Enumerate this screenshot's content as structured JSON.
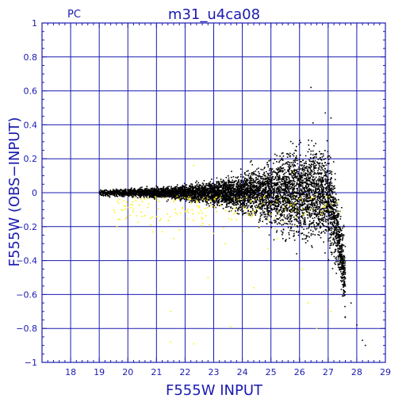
{
  "header": {
    "left_label": "PC",
    "title": "m31_u4ca08"
  },
  "chart_data": {
    "type": "scatter",
    "xlabel": "F555W  INPUT",
    "ylabel": "F555W  (OBS−INPUT)",
    "xlim": [
      17,
      29
    ],
    "ylim": [
      -1,
      1
    ],
    "x_ticks": [
      18,
      19,
      20,
      21,
      22,
      23,
      24,
      25,
      26,
      27,
      28,
      29
    ],
    "y_ticks": [
      -1,
      -0.8,
      -0.6,
      -0.4,
      -0.2,
      0,
      0.2,
      0.4,
      0.6,
      0.8,
      1
    ],
    "y_tick_labels": [
      "−1",
      "−0.8",
      "−0.6",
      "−0.4",
      "−0.2",
      "0",
      "0.2",
      "0.4",
      "0.6",
      "0.8",
      "1"
    ],
    "grid": true,
    "colors": {
      "frame": "#1a1ab0",
      "main_points": "#000000",
      "outlier_points": "#ffee00"
    },
    "series": [
      {
        "points_sampled": [
          [
            19.1,
            0.01
          ],
          [
            19.3,
            0.0
          ],
          [
            19.5,
            0.01
          ],
          [
            19.8,
            0.0
          ],
          [
            20.1,
            0.01
          ],
          [
            20.4,
            -0.01
          ],
          [
            20.7,
            0.0
          ],
          [
            21.0,
            0.01
          ],
          [
            21.3,
            0.0
          ],
          [
            21.6,
            -0.01
          ],
          [
            21.9,
            0.0
          ],
          [
            22.2,
            0.01
          ],
          [
            22.5,
            0.0
          ],
          [
            22.8,
            -0.01
          ],
          [
            23.1,
            0.01
          ],
          [
            23.4,
            0.0
          ],
          [
            23.7,
            0.02
          ],
          [
            24.0,
            -0.02
          ],
          [
            24.3,
            0.03
          ],
          [
            24.6,
            -0.03
          ],
          [
            24.9,
            0.04
          ],
          [
            25.2,
            -0.04
          ],
          [
            25.5,
            0.06
          ],
          [
            25.8,
            -0.06
          ],
          [
            26.1,
            0.1
          ],
          [
            26.3,
            -0.1
          ],
          [
            26.5,
            0.15
          ],
          [
            26.7,
            -0.12
          ],
          [
            26.9,
            0.2
          ],
          [
            27.0,
            -0.18
          ],
          [
            27.2,
            -0.3
          ],
          [
            27.4,
            -0.4
          ],
          [
            27.6,
            -0.55
          ],
          [
            27.8,
            -0.65
          ],
          [
            28.0,
            -0.78
          ],
          [
            28.2,
            -0.87
          ],
          [
            26.4,
            0.62
          ],
          [
            26.9,
            0.47
          ],
          [
            27.1,
            0.44
          ],
          [
            28.3,
            -0.9
          ]
        ]
      },
      {
        "points_sampled": [
          [
            19.7,
            -0.04
          ],
          [
            20.2,
            -0.1
          ],
          [
            20.5,
            -0.14
          ],
          [
            20.8,
            -0.19
          ],
          [
            21.2,
            -0.23
          ],
          [
            21.6,
            -0.27
          ],
          [
            22.0,
            -0.11
          ],
          [
            22.3,
            0.16
          ],
          [
            22.6,
            -0.12
          ],
          [
            23.0,
            -0.24
          ],
          [
            23.4,
            -0.3
          ],
          [
            23.8,
            -0.16
          ],
          [
            24.2,
            -0.12
          ],
          [
            24.6,
            -0.2
          ],
          [
            24.9,
            -0.33
          ],
          [
            25.2,
            -0.27
          ],
          [
            25.5,
            -0.1
          ],
          [
            25.8,
            0.12
          ],
          [
            26.1,
            -0.45
          ],
          [
            26.3,
            -0.65
          ],
          [
            26.6,
            -0.8
          ],
          [
            27.1,
            -0.7
          ],
          [
            21.5,
            -0.88
          ],
          [
            22.3,
            -0.89
          ],
          [
            21.5,
            -0.7
          ],
          [
            22.8,
            -0.5
          ],
          [
            23.6,
            -0.79
          ],
          [
            24.4,
            -0.56
          ]
        ]
      }
    ]
  }
}
